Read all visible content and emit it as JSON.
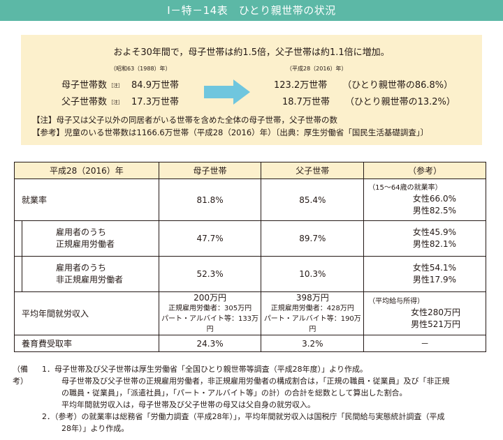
{
  "title": "Ⅰ－特－14表　ひとり親世帯の状況",
  "summary": {
    "headline": "およそ30年間で，母子世帯は約1.5倍，父子世帯は約1.1倍に増加。",
    "era_left": "（昭和63（1988）年）",
    "era_right": "（平成28（2016）年）",
    "rows": [
      {
        "label": "母子世帯数",
        "tag": "［注］",
        "left_value": "84.9万世帯",
        "right_value": "123.2万世帯",
        "right_pct": "（ひとり親世帯の86.8%）"
      },
      {
        "label": "父子世帯数",
        "tag": "［注］",
        "left_value": "17.3万世帯",
        "right_value": "18.7万世帯",
        "right_pct": "（ひとり親世帯の13.2%）"
      }
    ],
    "note1": "【注】母子又は父子以外の同居者がいる世帯を含めた全体の母子世帯，父子世帯の数",
    "note2": "【参考】児童のいる世帯数は1166.6万世帯（平成28（2016）年）〔出典：厚生労働省「国民生活基礎調査」〕",
    "colors": {
      "title_bg": "#5cb8a6",
      "box_bg": "#fcf0cc",
      "arrow": "#6fc6de"
    }
  },
  "table": {
    "headers": [
      "平成28（2016）年",
      "母子世帯",
      "父子世帯",
      "（参考）"
    ],
    "employment": {
      "label": "就業率",
      "mother": "81.8%",
      "father": "85.4%",
      "ref_caption": "（15～64歳の就業率）",
      "ref_female": "女性66.0%",
      "ref_male": "男性82.5%"
    },
    "regular": {
      "label_line1": "雇用者のうち",
      "label_line2": "正規雇用労働者",
      "mother": "47.7%",
      "father": "89.7%",
      "ref_female": "女性45.9%",
      "ref_male": "男性82.1%"
    },
    "nonregular": {
      "label_line1": "雇用者のうち",
      "label_line2": "非正規雇用労働者",
      "mother": "52.3%",
      "father": "10.3%",
      "ref_female": "女性54.1%",
      "ref_male": "男性17.9%"
    },
    "income": {
      "label": "平均年間就労収入",
      "mother_total": "200万円",
      "mother_regular": "正規雇用労働者：305万円",
      "mother_part": "パート・アルバイト等：133万円",
      "father_total": "398万円",
      "father_regular": "正規雇用労働者：428万円",
      "father_part": "パート・アルバイト等：190万円",
      "ref_caption": "（平均給与所得）",
      "ref_female": "女性280万円",
      "ref_male": "男性521万円"
    },
    "support": {
      "label": "養育費受取率",
      "mother": "24.3%",
      "father": "3.2%",
      "ref": "－"
    }
  },
  "remarks": {
    "label": "（備考）",
    "lines": [
      "1．母子世帯及び父子世帯は厚生労働省「全国ひとり親世帯等調査（平成28年度）」より作成。",
      "母子世帯及び父子世帯の正規雇用労働者，非正規雇用労働者の構成割合は，「正規の職員・従業員」及び「非正規",
      "の職員・従業員」，「派遣社員」，「パート・アルバイト等」の計）の合計を総数として算出した割合。",
      "平均年間就労収入は，母子世帯及び父子世帯の母又は父自身の就労収入。",
      "2．（参考）の就業率は総務省「労働力調査（平成28年）」，平均年間就労収入は国税庁「民間給与実態統計調査（平成",
      "28年）」より作成。"
    ]
  }
}
